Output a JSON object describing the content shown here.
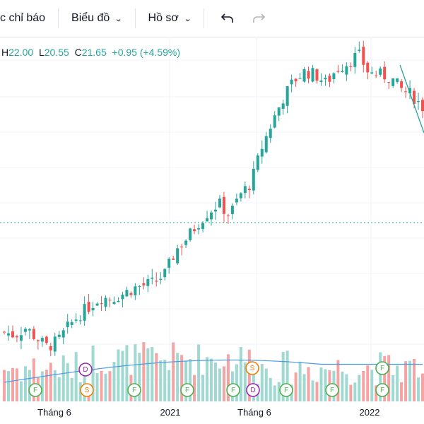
{
  "toolbar": {
    "indicators_label": "c chỉ báo",
    "chart_label": "Biểu đồ",
    "profile_label": "Hồ sơ",
    "undo_icon": "undo-icon",
    "redo_icon": "redo-icon"
  },
  "ohlc": {
    "h_key": "H",
    "h_val": "22.00",
    "l_key": "L",
    "l_val": "20.55",
    "c_key": "C",
    "c_val": "21.65",
    "change": "+0.95 (+4.59%)"
  },
  "colors": {
    "up": "#26a69a",
    "down": "#ef5350",
    "vol_up": "#9fd9d2",
    "vol_down": "#f5a3a3",
    "ma": "#4d9be6",
    "dotted": "#26a69a"
  },
  "x_axis": {
    "labels": [
      "Tháng 6",
      "2021",
      "Tháng 6",
      "2022"
    ]
  },
  "events": [
    {
      "t": "F",
      "c": "#4caf50"
    },
    {
      "t": "S",
      "c": "#f57c00"
    },
    {
      "t": "D",
      "c": "#9c27b0"
    },
    {
      "t": "F",
      "c": "#4caf50"
    },
    {
      "t": "F",
      "c": "#4caf50"
    },
    {
      "t": "F",
      "c": "#4caf50"
    },
    {
      "t": "F",
      "c": "#4caf50"
    },
    {
      "t": "S",
      "c": "#f57c00"
    },
    {
      "t": "D",
      "c": "#9c27b0"
    },
    {
      "t": "F",
      "c": "#4caf50"
    },
    {
      "t": "F",
      "c": "#4caf50"
    },
    {
      "t": "F",
      "c": "#4caf50"
    },
    {
      "t": "F",
      "c": "#4caf50"
    },
    {
      "t": "F",
      "c": "#4caf50"
    }
  ],
  "chart_data": {
    "type": "candlestick",
    "close_prices_approx": [
      11.2,
      11.0,
      11.5,
      10.8,
      10.2,
      10.6,
      11.6,
      12.4,
      13.0,
      13.6,
      13.5,
      13.8,
      14.2,
      14.4,
      14.6,
      15.2,
      16.8,
      17.6,
      18.6,
      19.4,
      20.0,
      19.2,
      20.6,
      21.4,
      23.8,
      25.6,
      27.2,
      28.4,
      29.0,
      28.8,
      28.2,
      29.2,
      29.6,
      30.2,
      28.9,
      28.8,
      28.6,
      27.8,
      27.4,
      26.6
    ],
    "volume_ma_visible": true
  }
}
